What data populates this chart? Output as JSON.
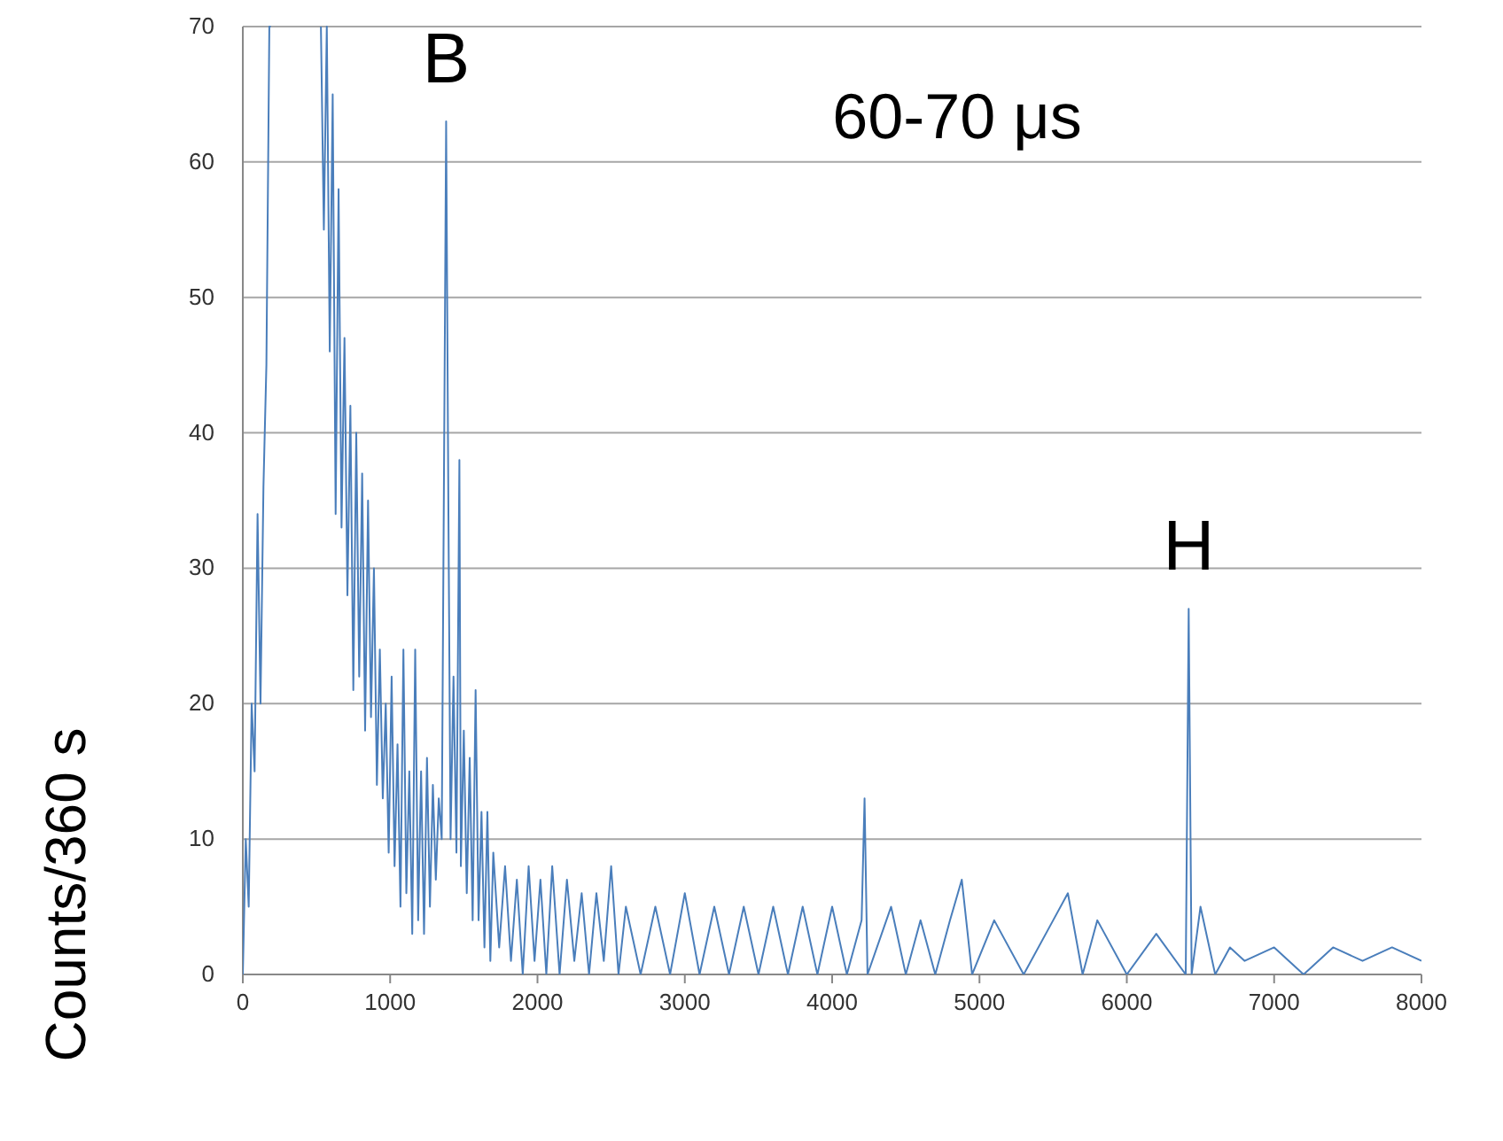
{
  "chart_data": {
    "type": "line",
    "title": "60-70 μs",
    "ylabel": "Counts/360 s",
    "xlim": [
      0,
      8000
    ],
    "xticks": [
      0,
      1000,
      2000,
      3000,
      4000,
      5000,
      6000,
      7000,
      8000
    ],
    "ylim": [
      0,
      70
    ],
    "yticks": [
      0,
      10,
      20,
      30,
      40,
      50,
      60,
      70
    ],
    "grid": "y",
    "marker": "none",
    "line_style": "solid",
    "annotations": [
      {
        "text": "B",
        "x": 1380,
        "y": 63
      },
      {
        "text": "H",
        "x": 6420,
        "y": 27
      }
    ],
    "series": [
      {
        "color": "#4a7ebb",
        "x": [
          0,
          20,
          40,
          60,
          80,
          100,
          120,
          140,
          160,
          180,
          190,
          300,
          530,
          550,
          570,
          590,
          610,
          630,
          650,
          670,
          690,
          710,
          730,
          750,
          770,
          790,
          810,
          830,
          850,
          870,
          890,
          910,
          930,
          950,
          970,
          990,
          1010,
          1030,
          1050,
          1070,
          1090,
          1110,
          1130,
          1150,
          1170,
          1190,
          1210,
          1230,
          1250,
          1270,
          1290,
          1310,
          1330,
          1350,
          1370,
          1380,
          1395,
          1410,
          1430,
          1450,
          1470,
          1480,
          1500,
          1520,
          1540,
          1560,
          1580,
          1600,
          1620,
          1640,
          1660,
          1680,
          1700,
          1740,
          1780,
          1820,
          1860,
          1900,
          1940,
          1980,
          2020,
          2060,
          2100,
          2150,
          2200,
          2250,
          2300,
          2350,
          2400,
          2450,
          2500,
          2550,
          2600,
          2700,
          2800,
          2900,
          3000,
          3100,
          3200,
          3300,
          3400,
          3500,
          3600,
          3700,
          3800,
          3900,
          4000,
          4100,
          4200,
          4220,
          4240,
          4400,
          4500,
          4600,
          4700,
          4800,
          4880,
          4950,
          5100,
          5300,
          5500,
          5600,
          5700,
          5800,
          6000,
          6200,
          6400,
          6420,
          6440,
          6500,
          6600,
          6700,
          6800,
          7000,
          7200,
          7400,
          7600,
          7800,
          8000
        ],
        "values": [
          0,
          10,
          5,
          20,
          15,
          34,
          20,
          36,
          45,
          70,
          70,
          null,
          70,
          55,
          70,
          46,
          65,
          34,
          58,
          33,
          47,
          28,
          42,
          21,
          40,
          22,
          37,
          18,
          35,
          19,
          30,
          14,
          24,
          13,
          20,
          9,
          22,
          8,
          17,
          5,
          24,
          6,
          15,
          3,
          24,
          4,
          15,
          3,
          16,
          5,
          14,
          7,
          13,
          10,
          45,
          63,
          35,
          10,
          22,
          9,
          38,
          8,
          18,
          6,
          16,
          4,
          21,
          4,
          12,
          2,
          12,
          1,
          9,
          2,
          8,
          1,
          7,
          0,
          8,
          1,
          7,
          0,
          8,
          0,
          7,
          1,
          6,
          0,
          6,
          1,
          8,
          0,
          5,
          0,
          5,
          0,
          6,
          0,
          5,
          0,
          5,
          0,
          5,
          0,
          5,
          0,
          5,
          0,
          4,
          13,
          0,
          5,
          0,
          4,
          0,
          4,
          7,
          0,
          4,
          0,
          4,
          6,
          0,
          4,
          0,
          3,
          0,
          27,
          0,
          5,
          0,
          2,
          1,
          2,
          0,
          2,
          1,
          2,
          1
        ]
      }
    ]
  }
}
